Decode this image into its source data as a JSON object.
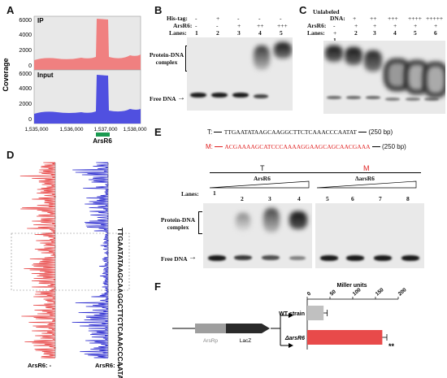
{
  "panels": {
    "A": "A",
    "B": "B",
    "C": "C",
    "D": "D",
    "E": "E",
    "F": "F"
  },
  "panelA": {
    "ylabel": "Coverage",
    "ip_label": "IP",
    "input_label": "Input",
    "yticks": [
      "6000",
      "4000",
      "2000",
      "0"
    ],
    "xticks": [
      "1,535,000",
      "1,536,000",
      "1,537,000",
      "1,538,000"
    ],
    "gene": "ArsR6",
    "colors": {
      "ip": "#f08080",
      "input": "#5050e0",
      "gene": "#1a9a50"
    }
  },
  "panelB": {
    "row1": "His-tag:",
    "row2": "ArsR6:",
    "row3": "Lanes:",
    "his": [
      "-",
      "+",
      "-",
      "-",
      "-"
    ],
    "arsr": [
      "-",
      "-",
      "+",
      "++",
      "+++"
    ],
    "lanes": [
      "1",
      "2",
      "3",
      "4",
      "5"
    ],
    "complex": "Protein-DNA complex",
    "free": "Free DNA"
  },
  "panelC": {
    "row0": "Unlabeled",
    "row1": "DNA:",
    "row2": "ArsR6:",
    "row3": "Lanes:",
    "dna": [
      "-",
      "+",
      "++",
      "+++",
      "++++",
      "+++++"
    ],
    "arsr": [
      "+",
      "+",
      "+",
      "+",
      "+",
      "+"
    ],
    "lanes": [
      "1",
      "2",
      "3",
      "4",
      "5",
      "6"
    ]
  },
  "panelD": {
    "sequence": "TTGAATATAAGCAAGGCTTCTCAAACCCAATAT",
    "left_label": "ArsR6: -",
    "right_label": "ArsR6: +"
  },
  "panelE": {
    "t_label": "T:",
    "t_seq": "TTGAATATAAGCAAGGCTTCTCAAACCCAATAT",
    "t_len": "(250 bp)",
    "m_label": "M:",
    "m_seq": "ACGAAAAGCATCCCAAAAGGAAGCAGCAACGAAA",
    "m_len": "(250 bp)",
    "gel_t": "T",
    "gel_m": "M",
    "tri_t": "ArsR6",
    "tri_m": "ΔarsR6",
    "lanes_label": "Lanes:",
    "lanes": [
      "1",
      "2",
      "3",
      "4",
      "5",
      "6",
      "7",
      "8"
    ],
    "complex": "Protein-DNA complex",
    "free": "Free DNA",
    "color_m": "#e02020"
  },
  "panelF": {
    "title": "Miller units",
    "ticks": [
      "0",
      "50",
      "100",
      "150",
      "200"
    ],
    "promoter": "ArsRp",
    "reporter": "LacZ",
    "strains": [
      {
        "label": "WT strain",
        "value": 36,
        "err": 8,
        "color": "#c0c0c0"
      },
      {
        "label": "ΔarsR6",
        "value": 165,
        "err": 10,
        "color": "#e84a4a"
      }
    ],
    "sig": "**",
    "xlim": [
      0,
      200
    ]
  }
}
